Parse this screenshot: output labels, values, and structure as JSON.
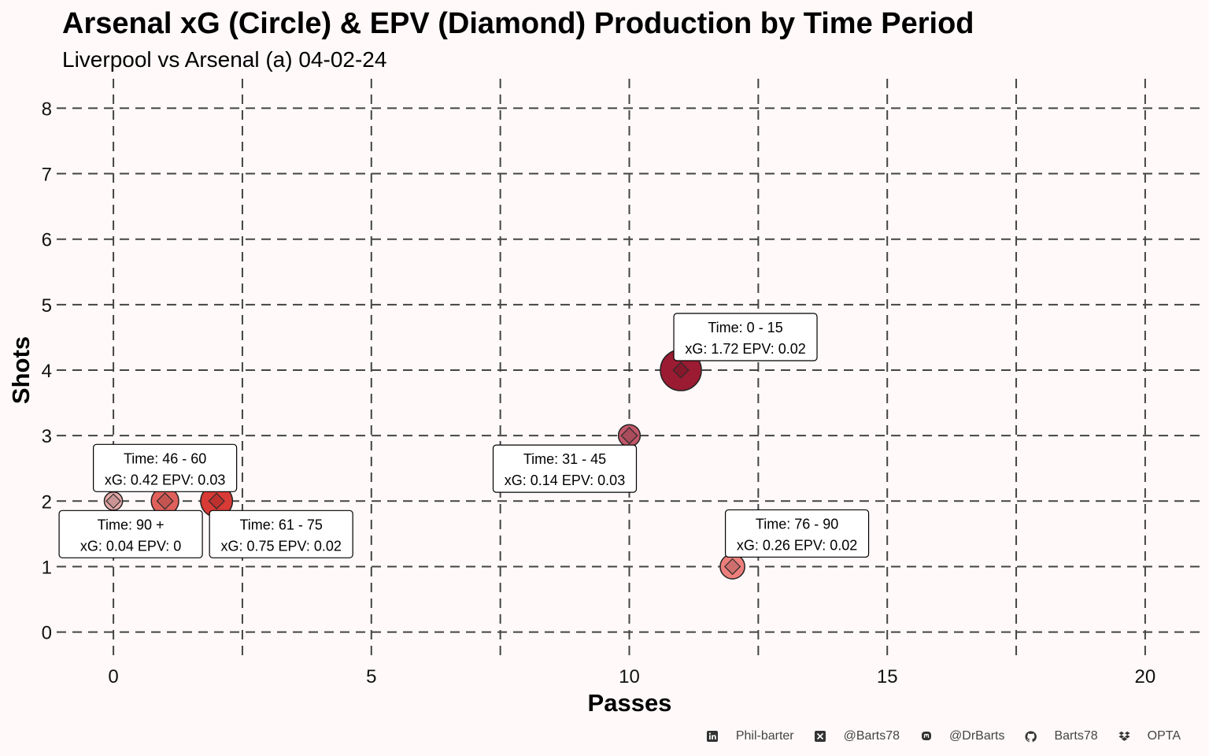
{
  "title": "Arsenal xG (Circle) & EPV (Diamond) Production by Time Period",
  "subtitle": "Liverpool vs Arsenal (a) 04-02-24",
  "chart_data": {
    "type": "scatter",
    "title": "Arsenal xG (Circle) & EPV (Diamond) Production by Time Period",
    "subtitle": "Liverpool vs Arsenal (a) 04-02-24",
    "xlabel": "Passes",
    "ylabel": "Shots",
    "xlim": [
      -1.1,
      21.1
    ],
    "ylim": [
      -0.45,
      8.45
    ],
    "x_ticks": [
      0,
      5,
      10,
      15,
      20
    ],
    "y_ticks": [
      0,
      1,
      2,
      3,
      4,
      5,
      6,
      7,
      8
    ],
    "grid": true,
    "points": [
      {
        "time": "0 - 15",
        "passes": 11,
        "shots": 4,
        "xg": 1.72,
        "epv": 0.02,
        "label_line1": "Time: 0 - 15",
        "label_line2": "xG: 1.72 EPV: 0.02",
        "color": "#9a1b32"
      },
      {
        "time": "31 - 45",
        "passes": 10,
        "shots": 3,
        "xg": 0.14,
        "epv": 0.03,
        "label_line1": "Time: 31 - 45",
        "label_line2": "xG: 0.14 EPV: 0.03",
        "color": "#c2576a"
      },
      {
        "time": "46 - 60",
        "passes": 1,
        "shots": 2,
        "xg": 0.42,
        "epv": 0.03,
        "label_line1": "Time: 46 - 60",
        "label_line2": "xG: 0.42 EPV: 0.03",
        "color": "#e0605c"
      },
      {
        "time": "61 - 75",
        "passes": 2,
        "shots": 2,
        "xg": 0.75,
        "epv": 0.02,
        "label_line1": "Time: 61 - 75",
        "label_line2": "xG: 0.75 EPV: 0.02",
        "color": "#d83a36"
      },
      {
        "time": "76 - 90",
        "passes": 12,
        "shots": 1,
        "xg": 0.26,
        "epv": 0.02,
        "label_line1": "Time: 76 - 90",
        "label_line2": "xG: 0.26 EPV: 0.02",
        "color": "#ec7f7c"
      },
      {
        "time": "90 +",
        "passes": 0,
        "shots": 2,
        "xg": 0.04,
        "epv": 0,
        "label_line1": "Time: 90 +",
        "label_line2": "xG: 0.04 EPV: 0",
        "color": "#e8a9a9"
      }
    ]
  },
  "footer": {
    "items": [
      {
        "icon": "linkedin-icon",
        "label": "Phil-barter"
      },
      {
        "icon": "x-twitter-icon",
        "label": "@Barts78"
      },
      {
        "icon": "mastodon-icon",
        "label": "@DrBarts"
      },
      {
        "icon": "github-icon",
        "label": "Barts78"
      },
      {
        "icon": "dropbox-icon",
        "label": "OPTA"
      }
    ]
  }
}
